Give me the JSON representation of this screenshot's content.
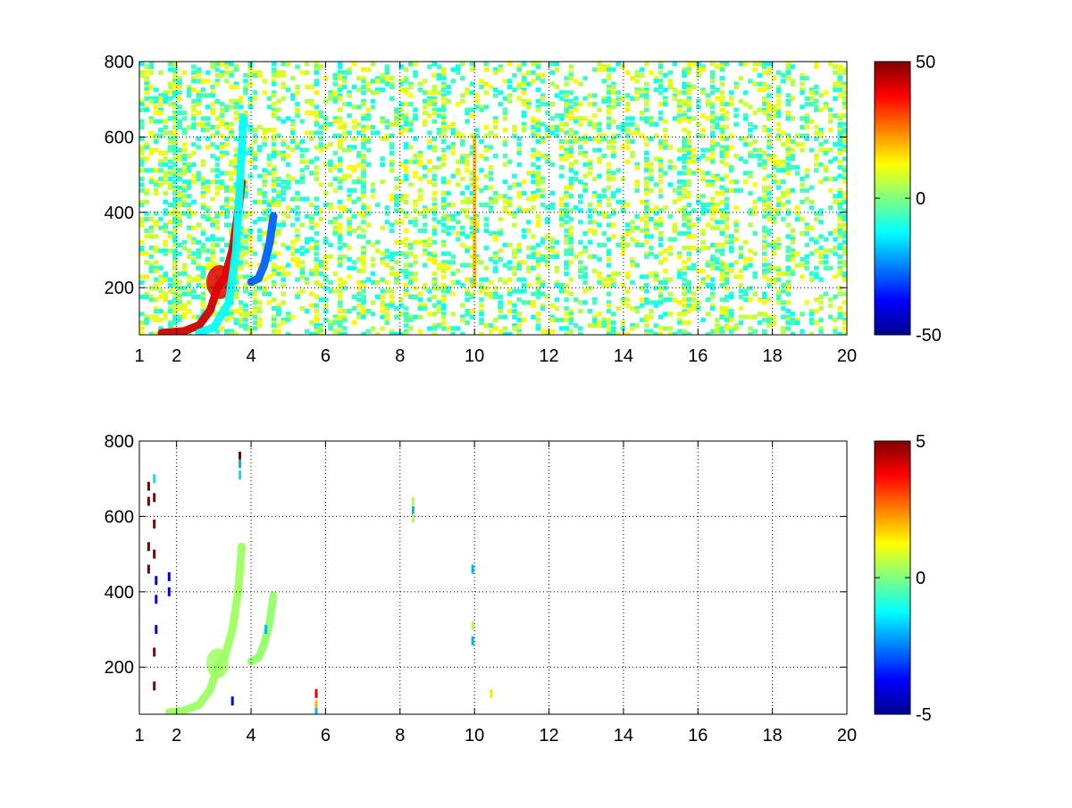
{
  "chart_data": [
    {
      "type": "heatmap",
      "title": "",
      "xlabel": "",
      "ylabel": "",
      "xlim": [
        1,
        20
      ],
      "ylim": [
        75,
        800
      ],
      "xticks": [
        1,
        2,
        4,
        6,
        8,
        10,
        12,
        14,
        16,
        18,
        20
      ],
      "xtick_labels": [
        "1",
        "2",
        "4",
        "6",
        "8",
        "10",
        "12",
        "14",
        "16",
        "18",
        "20"
      ],
      "yticks": [
        200,
        400,
        600,
        800
      ],
      "ytick_labels": [
        "200",
        "400",
        "600",
        "800"
      ],
      "grid": true,
      "colormap": "jet",
      "clim": [
        -50,
        50
      ],
      "colorbar_ticks": [
        -50,
        0,
        50
      ],
      "colorbar_labels": [
        "-50",
        "0",
        "50"
      ],
      "features": [
        {
          "kind": "curve",
          "x": [
            1.6,
            2.2,
            2.6,
            2.9,
            3.1,
            3.3,
            3.5,
            3.65,
            3.75
          ],
          "y": [
            80,
            85,
            100,
            140,
            200,
            230,
            300,
            400,
            480
          ],
          "value": 42
        },
        {
          "kind": "blob",
          "x": [
            2.8,
            3.5
          ],
          "y": [
            170,
            260
          ],
          "value": 40
        },
        {
          "kind": "curve",
          "x": [
            4.0,
            4.2,
            4.35,
            4.5,
            4.6
          ],
          "y": [
            215,
            225,
            260,
            320,
            390
          ],
          "value": -28
        },
        {
          "kind": "curve",
          "x": [
            2.6,
            3.0,
            3.4,
            3.6,
            3.8
          ],
          "y": [
            80,
            95,
            160,
            300,
            650
          ],
          "value": -12
        },
        {
          "kind": "stripe",
          "x": [
            10.0,
            10.0
          ],
          "y": [
            200,
            600
          ],
          "value": 20
        }
      ],
      "background": "sparse speckle of values in roughly -12 to 15 across the whole domain"
    },
    {
      "type": "heatmap",
      "title": "",
      "xlabel": "",
      "ylabel": "",
      "xlim": [
        1,
        20
      ],
      "ylim": [
        75,
        800
      ],
      "xticks": [
        1,
        2,
        4,
        6,
        8,
        10,
        12,
        14,
        16,
        18,
        20
      ],
      "xtick_labels": [
        "1",
        "2",
        "4",
        "6",
        "8",
        "10",
        "12",
        "14",
        "16",
        "18",
        "20"
      ],
      "yticks": [
        200,
        400,
        600,
        800
      ],
      "ytick_labels": [
        "200",
        "400",
        "600",
        "800"
      ],
      "grid": true,
      "colormap": "jet",
      "clim": [
        -5,
        5
      ],
      "colorbar_ticks": [
        -5,
        0,
        5
      ],
      "colorbar_labels": [
        "-5",
        "0",
        "5"
      ],
      "features": [
        {
          "kind": "curve",
          "x": [
            1.8,
            2.2,
            2.6,
            2.9,
            3.1,
            3.3,
            3.5,
            3.65,
            3.75
          ],
          "y": [
            80,
            85,
            100,
            140,
            200,
            230,
            300,
            400,
            520
          ],
          "value": 0.3
        },
        {
          "kind": "blob",
          "x": [
            2.8,
            3.4
          ],
          "y": [
            170,
            250
          ],
          "value": 0.3
        },
        {
          "kind": "curve",
          "x": [
            4.0,
            4.2,
            4.35,
            4.5,
            4.6
          ],
          "y": [
            215,
            225,
            260,
            320,
            390
          ],
          "value": 0.2
        }
      ],
      "points": [
        {
          "x": 1.25,
          "y": 680,
          "value": 5
        },
        {
          "x": 1.25,
          "y": 640,
          "value": 5
        },
        {
          "x": 1.25,
          "y": 520,
          "value": 5
        },
        {
          "x": 1.25,
          "y": 460,
          "value": 5
        },
        {
          "x": 1.4,
          "y": 700,
          "value": -1.5
        },
        {
          "x": 1.4,
          "y": 650,
          "value": 5
        },
        {
          "x": 1.4,
          "y": 580,
          "value": 5
        },
        {
          "x": 1.4,
          "y": 500,
          "value": 5
        },
        {
          "x": 1.4,
          "y": 240,
          "value": 5
        },
        {
          "x": 1.4,
          "y": 150,
          "value": 5
        },
        {
          "x": 1.45,
          "y": 430,
          "value": -4
        },
        {
          "x": 1.45,
          "y": 380,
          "value": -4
        },
        {
          "x": 1.45,
          "y": 300,
          "value": -4
        },
        {
          "x": 1.8,
          "y": 440,
          "value": -4
        },
        {
          "x": 1.8,
          "y": 400,
          "value": -4
        },
        {
          "x": 3.7,
          "y": 760,
          "value": 5
        },
        {
          "x": 3.7,
          "y": 710,
          "value": -1.5
        },
        {
          "x": 3.7,
          "y": 740,
          "value": -2
        },
        {
          "x": 4.4,
          "y": 300,
          "value": -2
        },
        {
          "x": 5.75,
          "y": 130,
          "value": 4
        },
        {
          "x": 5.75,
          "y": 100,
          "value": 2
        },
        {
          "x": 5.75,
          "y": 80,
          "value": -2
        },
        {
          "x": 8.35,
          "y": 640,
          "value": 0.5
        },
        {
          "x": 8.35,
          "y": 615,
          "value": -2
        },
        {
          "x": 8.35,
          "y": 595,
          "value": 0.5
        },
        {
          "x": 9.95,
          "y": 460,
          "value": -2
        },
        {
          "x": 9.95,
          "y": 310,
          "value": 0.5
        },
        {
          "x": 9.95,
          "y": 270,
          "value": -2
        },
        {
          "x": 10.45,
          "y": 130,
          "value": 1.5
        },
        {
          "x": 3.5,
          "y": 110,
          "value": -4
        }
      ]
    }
  ]
}
